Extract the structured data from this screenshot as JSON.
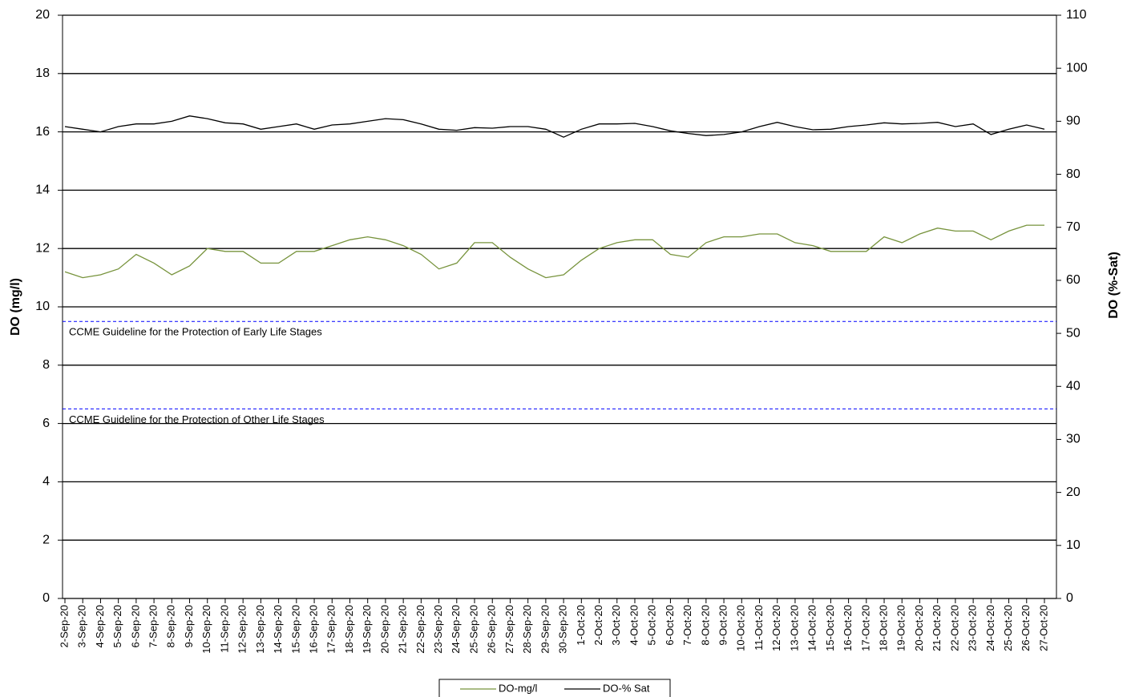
{
  "chart_data": {
    "type": "line",
    "ylabel": "DO (mg/l)",
    "y2label": "DO (%-Sat)",
    "categories": [
      "2-Sep-20",
      "3-Sep-20",
      "4-Sep-20",
      "5-Sep-20",
      "6-Sep-20",
      "7-Sep-20",
      "8-Sep-20",
      "9-Sep-20",
      "10-Sep-20",
      "11-Sep-20",
      "12-Sep-20",
      "13-Sep-20",
      "14-Sep-20",
      "15-Sep-20",
      "16-Sep-20",
      "17-Sep-20",
      "18-Sep-20",
      "19-Sep-20",
      "20-Sep-20",
      "21-Sep-20",
      "22-Sep-20",
      "23-Sep-20",
      "24-Sep-20",
      "25-Sep-20",
      "26-Sep-20",
      "27-Sep-20",
      "28-Sep-20",
      "29-Sep-20",
      "30-Sep-20",
      "1-Oct-20",
      "2-Oct-20",
      "3-Oct-20",
      "4-Oct-20",
      "5-Oct-20",
      "6-Oct-20",
      "7-Oct-20",
      "8-Oct-20",
      "9-Oct-20",
      "10-Oct-20",
      "11-Oct-20",
      "12-Oct-20",
      "13-Oct-20",
      "14-Oct-20",
      "15-Oct-20",
      "16-Oct-20",
      "17-Oct-20",
      "18-Oct-20",
      "19-Oct-20",
      "20-Oct-20",
      "21-Oct-20",
      "22-Oct-20",
      "23-Oct-20",
      "24-Oct-20",
      "25-Oct-20",
      "26-Oct-20",
      "27-Oct-20"
    ],
    "series": [
      {
        "name": "DO-mg/l",
        "color": "#77933c",
        "axis": "y",
        "values": [
          11.2,
          11.0,
          11.1,
          11.3,
          11.8,
          11.5,
          11.1,
          11.4,
          12.0,
          11.9,
          11.9,
          11.5,
          11.5,
          11.9,
          11.9,
          12.1,
          12.3,
          12.4,
          12.3,
          12.1,
          11.8,
          11.3,
          11.5,
          12.2,
          12.2,
          11.7,
          11.3,
          11.0,
          11.1,
          11.6,
          12.0,
          12.2,
          12.3,
          12.3,
          11.8,
          11.7,
          12.2,
          12.4,
          12.4,
          12.5,
          12.5,
          12.2,
          12.1,
          11.9,
          11.9,
          11.9,
          12.4,
          12.2,
          12.5,
          12.7,
          12.6,
          12.6,
          12.3,
          12.6,
          12.8,
          12.8
        ]
      },
      {
        "name": "DO-% Sat",
        "color": "#000000",
        "axis": "y2",
        "values": [
          89,
          88.5,
          88,
          89,
          89.5,
          89.5,
          90,
          91,
          90.5,
          89.7,
          89.5,
          88.5,
          89,
          89.5,
          88.5,
          89.3,
          89.5,
          90,
          90.5,
          90.3,
          89.5,
          88.5,
          88.3,
          88.8,
          88.7,
          89,
          89,
          88.5,
          87,
          88.5,
          89.5,
          89.5,
          89.6,
          89,
          88.2,
          87.7,
          87.3,
          87.5,
          88,
          89,
          89.8,
          89,
          88.4,
          88.5,
          89,
          89.3,
          89.7,
          89.5,
          89.6,
          89.8,
          89,
          89.5,
          87.5,
          88.5,
          89.3,
          88.5
        ]
      }
    ],
    "reference_lines": [
      {
        "value": 9.5,
        "label": "CCME Guideline for the Protection of Early Life Stages",
        "color": "#0000ff"
      },
      {
        "value": 6.5,
        "label": "CCME Guideline for the Protection of Other Life Stages",
        "color": "#0000ff"
      }
    ],
    "ylim": [
      0,
      20
    ],
    "yticks": [
      0,
      2,
      4,
      6,
      8,
      10,
      12,
      14,
      16,
      18,
      20
    ],
    "y2lim": [
      0,
      110
    ],
    "y2ticks": [
      0,
      10,
      20,
      30,
      40,
      50,
      60,
      70,
      80,
      90,
      100,
      110
    ],
    "grid": true,
    "legend": "bottom"
  }
}
